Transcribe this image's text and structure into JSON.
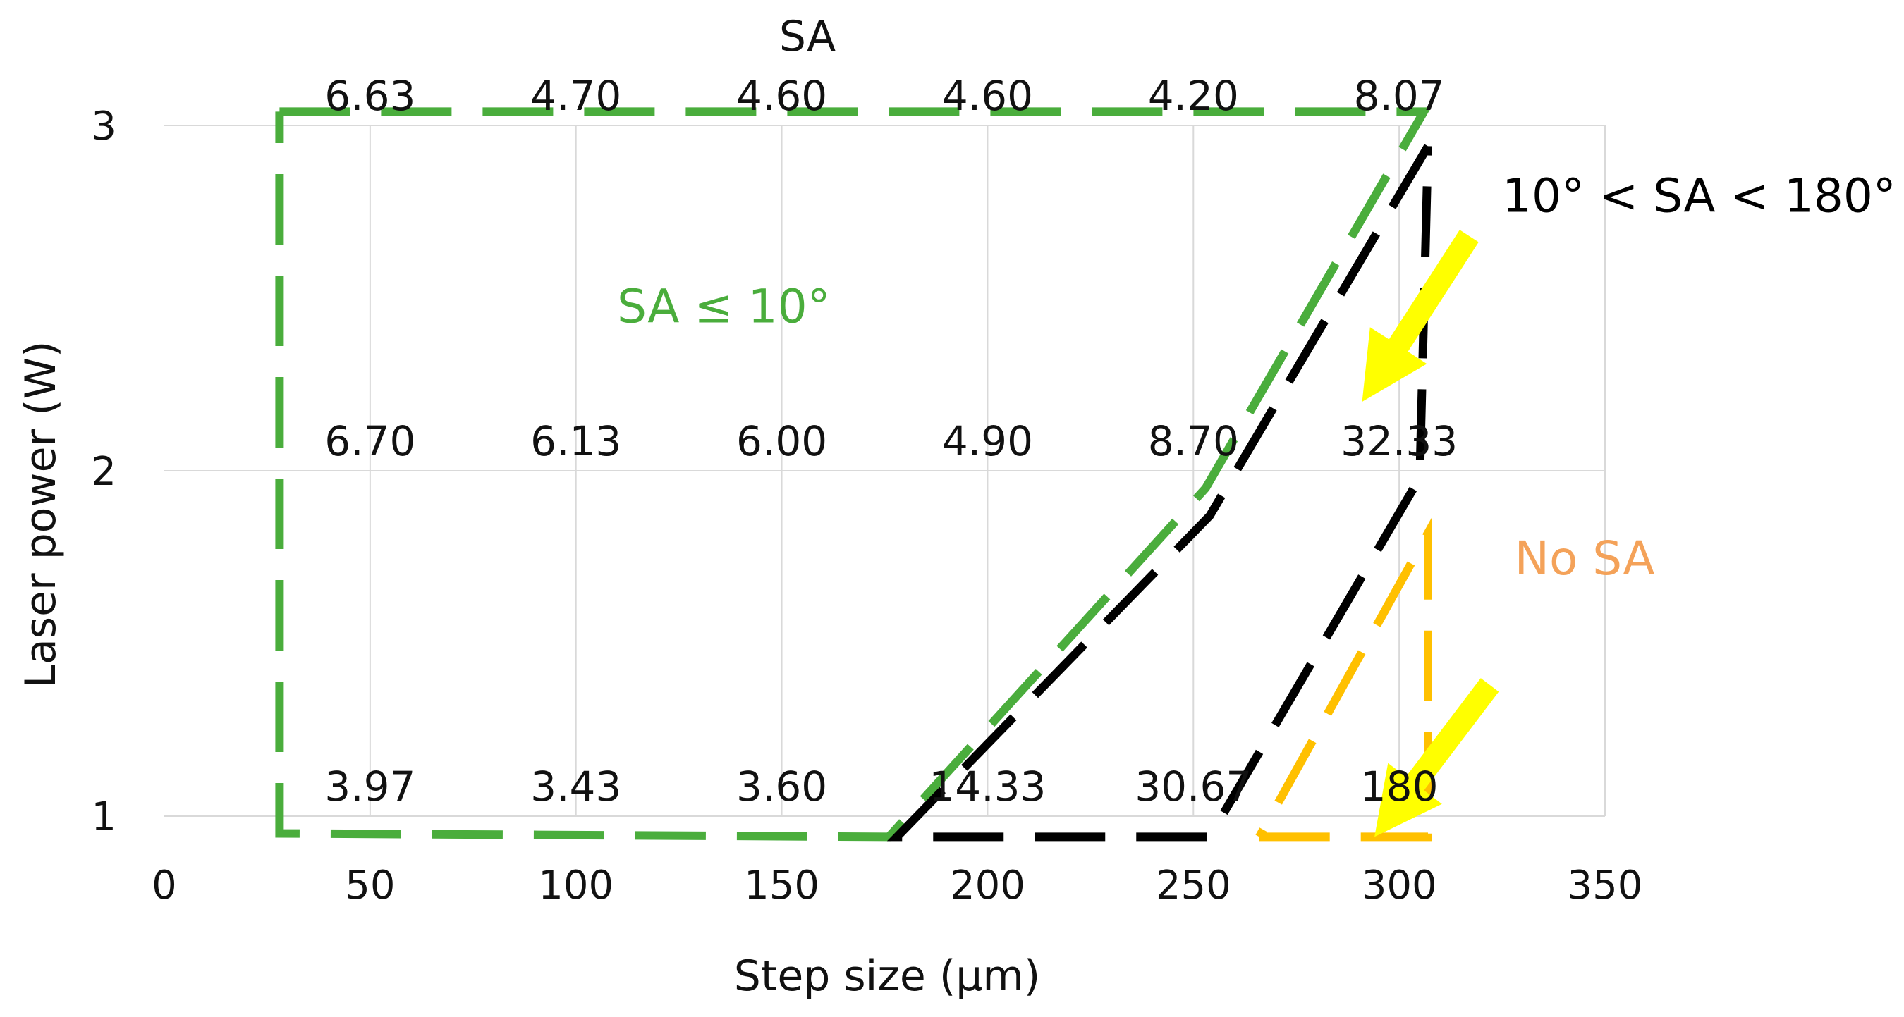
{
  "chart_data": {
    "type": "scatter",
    "title": "SA",
    "xlabel": "Step size (μm)",
    "ylabel": "Laser power (W)",
    "xlim": [
      0,
      350
    ],
    "ylim": [
      1,
      3
    ],
    "xticks": [
      "0",
      "50",
      "100",
      "150",
      "200",
      "250",
      "300",
      "350"
    ],
    "yticks": [
      "1",
      "2",
      "3"
    ],
    "grid": true,
    "points": [
      {
        "x": 50,
        "y": 3,
        "label": "6.63"
      },
      {
        "x": 100,
        "y": 3,
        "label": "4.70"
      },
      {
        "x": 150,
        "y": 3,
        "label": "4.60"
      },
      {
        "x": 200,
        "y": 3,
        "label": "4.60"
      },
      {
        "x": 250,
        "y": 3,
        "label": "4.20"
      },
      {
        "x": 300,
        "y": 3,
        "label": "8.07"
      },
      {
        "x": 50,
        "y": 2,
        "label": "6.70"
      },
      {
        "x": 100,
        "y": 2,
        "label": "6.13"
      },
      {
        "x": 150,
        "y": 2,
        "label": "6.00"
      },
      {
        "x": 200,
        "y": 2,
        "label": "4.90"
      },
      {
        "x": 250,
        "y": 2,
        "label": "8.70"
      },
      {
        "x": 300,
        "y": 2,
        "label": "32.33"
      },
      {
        "x": 50,
        "y": 1,
        "label": "3.97"
      },
      {
        "x": 100,
        "y": 1,
        "label": "3.43"
      },
      {
        "x": 150,
        "y": 1,
        "label": "3.60"
      },
      {
        "x": 200,
        "y": 1,
        "label": "14.33"
      },
      {
        "x": 250,
        "y": 1,
        "label": "30.67"
      },
      {
        "x": 300,
        "y": 1,
        "label": "180"
      }
    ],
    "regions": [
      {
        "name": "SA ≤ 10°",
        "color": "#4aad3c",
        "boundary": [
          [
            28,
            3.04
          ],
          [
            306,
            3.04
          ],
          [
            253,
            1.95
          ],
          [
            176,
            0.94
          ],
          [
            28,
            0.95
          ],
          [
            28,
            3.04
          ]
        ]
      },
      {
        "name": "10° < SA < 180°",
        "color": "#000000",
        "boundary": [
          [
            307,
            2.94
          ],
          [
            254,
            1.87
          ],
          [
            178,
            0.94
          ],
          [
            254,
            0.94
          ],
          [
            305,
            1.98
          ],
          [
            307,
            2.94
          ]
        ]
      },
      {
        "name": "No SA",
        "color": "#ffc000",
        "boundary": [
          [
            266,
            0.94
          ],
          [
            307,
            0.94
          ],
          [
            307,
            1.82
          ],
          [
            266,
            0.94
          ]
        ]
      }
    ],
    "annotations": [
      {
        "text": "SA ≤ 10°",
        "color": "#4aad3c",
        "x": 110,
        "y": 2.43
      },
      {
        "text": "10° < SA < 180°",
        "color": "#000000",
        "x": 325,
        "y": 2.75
      },
      {
        "text": "No SA",
        "color": "#f4a259",
        "x": 328,
        "y": 1.7
      }
    ],
    "arrows": [
      {
        "color": "#ffff00",
        "from": [
          317,
          2.68
        ],
        "to": [
          291,
          2.2
        ]
      },
      {
        "color": "#ffff00",
        "from": [
          322,
          1.38
        ],
        "to": [
          294,
          0.94
        ]
      }
    ]
  }
}
